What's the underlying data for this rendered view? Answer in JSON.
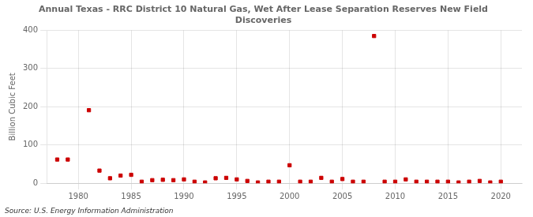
{
  "chart_data": {
    "type": "scatter",
    "title": "Annual Texas - RRC District 10 Natural Gas, Wet After Lease Separation Reserves New Field\nDiscoveries",
    "y_label": "Billion Cubic Feet",
    "annotations": [
      "Source: U.S. Energy Information Administration"
    ],
    "color": "#cc0000",
    "marker": "square",
    "grid": true,
    "xlim": [
      1977,
      2022
    ],
    "ylim": [
      0,
      400
    ],
    "xticks": [
      1980,
      1985,
      1990,
      1995,
      2000,
      2005,
      2010,
      2015,
      2020
    ],
    "yticks": [
      0,
      100,
      200,
      300,
      400
    ],
    "x": [
      1978,
      1979,
      1981,
      1982,
      1983,
      1984,
      1985,
      1986,
      1987,
      1988,
      1989,
      1990,
      1991,
      1992,
      1993,
      1994,
      1995,
      1996,
      1997,
      1998,
      1999,
      2000,
      2001,
      2002,
      2003,
      2004,
      2005,
      2006,
      2007,
      2008,
      2009,
      2010,
      2011,
      2012,
      2013,
      2014,
      2015,
      2016,
      2017,
      2018,
      2019,
      2020
    ],
    "values": [
      62,
      62,
      191,
      33,
      13,
      20,
      22,
      4,
      8,
      9,
      8,
      10,
      4,
      2,
      13,
      14,
      10,
      6,
      2,
      4,
      4,
      47,
      4,
      4,
      14,
      4,
      11,
      4,
      4,
      385,
      4,
      4,
      10,
      4,
      4,
      4,
      4,
      2,
      4,
      6,
      2,
      4
    ]
  }
}
